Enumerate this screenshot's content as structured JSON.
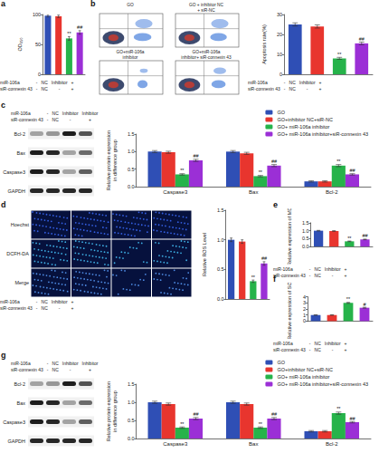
{
  "chart_data": [
    {
      "type": "bar",
      "panel": "a",
      "ylabel": "OD₄₅₀",
      "categories": [
        null,
        null,
        null,
        null
      ],
      "values": [
        98,
        97,
        60,
        70
      ],
      "errors": [
        2,
        2,
        3,
        3
      ],
      "colors": [
        "#2f4fb5",
        "#e8352e",
        "#26b34a",
        "#9b2fd6"
      ],
      "significance": [
        null,
        null,
        "**",
        "##"
      ],
      "ylim": [
        0,
        100
      ],
      "yticks": [
        0,
        50,
        100
      ],
      "grid": false,
      "conditions": {
        "rows": [
          {
            "label": "miR-106a",
            "cells": [
              "-",
              "NC",
              "Inhibitor",
              "+"
            ]
          },
          {
            "label": "siR-connexin 43",
            "cells": [
              "-",
              "NC",
              "-",
              "+"
            ]
          }
        ]
      }
    },
    {
      "type": "bar",
      "panel": "b",
      "ylabel": "Apoptosis rate(%)",
      "categories": [
        null,
        null,
        null,
        null
      ],
      "values": [
        25,
        24,
        8,
        15.5
      ],
      "errors": [
        0.8,
        0.8,
        0.5,
        0.7
      ],
      "colors": [
        "#2f4fb5",
        "#e8352e",
        "#26b34a",
        "#9b2fd6"
      ],
      "significance": [
        null,
        null,
        "**",
        "##"
      ],
      "ylim": [
        0,
        30
      ],
      "yticks": [
        0,
        10,
        20,
        30
      ],
      "grid": false,
      "conditions": {
        "rows": [
          {
            "label": "miR-106a",
            "cells": [
              "-",
              "NC",
              "Inhibitor",
              "+"
            ]
          },
          {
            "label": "siR-connexin 43",
            "cells": [
              "-",
              "NC",
              "-",
              "+"
            ]
          }
        ]
      }
    },
    {
      "type": "bar",
      "panel": "c",
      "ylabel": "Relative protein expression\nin difference group",
      "categories": [
        "Caspase3",
        "Bax",
        "Bcl-2"
      ],
      "series": [
        {
          "name": "GO",
          "color": "#2f4fb5",
          "values": [
            1.0,
            1.0,
            0.15
          ],
          "errors": [
            0.03,
            0.03,
            0.02
          ],
          "significance": [
            null,
            null,
            null
          ]
        },
        {
          "name": "GO+inhibitor NC+siR-NC",
          "color": "#e8352e",
          "values": [
            0.98,
            0.95,
            0.15
          ],
          "errors": [
            0.03,
            0.03,
            0.02
          ],
          "significance": [
            null,
            null,
            null
          ]
        },
        {
          "name": "GO+ miR-106a inhibitor",
          "color": "#26b34a",
          "values": [
            0.35,
            0.3,
            0.6
          ],
          "errors": [
            0.02,
            0.02,
            0.03
          ],
          "significance": [
            "**",
            "**",
            "**"
          ]
        },
        {
          "name": "GO+ miR-106a inhibitor+siR-connexin 43",
          "color": "#9b2fd6",
          "values": [
            0.75,
            0.6,
            0.35
          ],
          "errors": [
            0.03,
            0.03,
            0.02
          ],
          "significance": [
            "##",
            "##",
            "##"
          ]
        }
      ],
      "ylim": [
        0,
        1.5
      ],
      "yticks": [
        {
          "value": 0,
          "label": "0.0"
        },
        0.5,
        {
          "value": 1,
          "label": "1.0"
        },
        1.5
      ],
      "grid": false,
      "legend": "upper right"
    },
    {
      "type": "bar",
      "panel": "d",
      "ylabel": "Relative ROS Level",
      "categories": [
        null,
        null,
        null,
        null
      ],
      "values": [
        1.0,
        0.97,
        0.3,
        0.6
      ],
      "errors": [
        0.03,
        0.03,
        0.02,
        0.03
      ],
      "colors": [
        "#2f4fb5",
        "#e8352e",
        "#26b34a",
        "#9b2fd6"
      ],
      "significance": [
        null,
        null,
        "**",
        "##"
      ],
      "ylim": [
        0,
        1.5
      ],
      "yticks": [
        {
          "value": 0,
          "label": "0.0"
        },
        0.5,
        {
          "value": 1,
          "label": "1.0"
        },
        1.5
      ],
      "grid": false
    },
    {
      "type": "bar",
      "panel": "e",
      "ylabel": "Relative expression of MDA",
      "categories": [
        null,
        null,
        null,
        null
      ],
      "values": [
        1.0,
        0.98,
        0.33,
        0.45
      ],
      "errors": [
        0.02,
        0.02,
        0.02,
        0.02
      ],
      "colors": [
        "#2f4fb5",
        "#e8352e",
        "#26b34a",
        "#9b2fd6"
      ],
      "significance": [
        null,
        null,
        "**",
        "##"
      ],
      "ylim": [
        0,
        1.5
      ],
      "yticks": [
        {
          "value": 0,
          "label": "0.0"
        },
        0.5,
        {
          "value": 1,
          "label": "1.0"
        },
        1.5
      ],
      "grid": false,
      "conditions": {
        "rows": [
          {
            "label": "miR-106a",
            "cells": [
              "-",
              "NC",
              "Inhibitor",
              "+"
            ]
          },
          {
            "label": "siR-connexin 43",
            "cells": [
              "-",
              "NC",
              "-",
              "+"
            ]
          }
        ]
      }
    },
    {
      "type": "bar",
      "panel": "f",
      "ylabel": "Relative expression of SOD",
      "categories": [
        null,
        null,
        null,
        null
      ],
      "values": [
        1.0,
        1.0,
        3.0,
        2.2
      ],
      "errors": [
        0.04,
        0.04,
        0.08,
        0.08
      ],
      "colors": [
        "#2f4fb5",
        "#e8352e",
        "#26b34a",
        "#9b2fd6"
      ],
      "significance": [
        null,
        null,
        "**",
        "#"
      ],
      "ylim": [
        0,
        4
      ],
      "yticks": [
        0,
        1,
        2,
        3,
        4
      ],
      "grid": false,
      "conditions": {
        "rows": [
          {
            "label": "miR-106a",
            "cells": [
              "-",
              "NC",
              "Inhibitor",
              "+"
            ]
          },
          {
            "label": "siR-connexin 43",
            "cells": [
              "-",
              "NC",
              "-",
              "+"
            ]
          }
        ]
      }
    },
    {
      "type": "bar",
      "panel": "g",
      "ylabel": "Relative protein expression\nin difference group",
      "categories": [
        "Caspase3",
        "Bax",
        "Bcl-2"
      ],
      "series": [
        {
          "name": "GO",
          "color": "#2f4fb5",
          "values": [
            1.0,
            1.0,
            0.2
          ],
          "errors": [
            0.03,
            0.03,
            0.02
          ],
          "significance": [
            null,
            null,
            null
          ]
        },
        {
          "name": "GO+inhibitor NC+siR-NC",
          "color": "#e8352e",
          "values": [
            0.95,
            0.95,
            0.2
          ],
          "errors": [
            0.03,
            0.03,
            0.02
          ],
          "significance": [
            null,
            null,
            null
          ]
        },
        {
          "name": "GO+ miR-106a inhibitor",
          "color": "#26b34a",
          "values": [
            0.3,
            0.3,
            0.7
          ],
          "errors": [
            0.02,
            0.02,
            0.03
          ],
          "significance": [
            "**",
            "**",
            "**"
          ]
        },
        {
          "name": "GO+ miR-106a inhibitor+siR-connexin 43",
          "color": "#9b2fd6",
          "values": [
            0.55,
            0.55,
            0.45
          ],
          "errors": [
            0.03,
            0.03,
            0.02
          ],
          "significance": [
            "##",
            "##",
            "##"
          ]
        }
      ],
      "ylim": [
        0,
        1.5
      ],
      "yticks": [
        {
          "value": 0,
          "label": "0.0"
        },
        0.5,
        {
          "value": 1,
          "label": "1.0"
        },
        1.5
      ],
      "grid": false,
      "legend": "upper right"
    }
  ],
  "figure": {
    "flow": {
      "titles": [
        "GO",
        "GO + inhibitor NC\n+ siR-NC",
        "GO+miR-106a\ninhibitor",
        "GO+miR-106a\ninhibitor+ siR-connexin 43"
      ]
    },
    "blots": [
      {
        "panel": "c",
        "bands": [
          "Bcl-2",
          "Bax",
          "Caspase3",
          "GAPDH"
        ],
        "conditions": {
          "rows": [
            {
              "label": "miR-106a",
              "cells": [
                "-",
                "NC",
                "Inhibitor",
                "Inhibitor"
              ]
            },
            {
              "label": "siR-connexin 43",
              "cells": [
                "-",
                "NC",
                "-",
                "+"
              ]
            }
          ]
        }
      },
      {
        "panel": "g",
        "bands": [
          "Bcl-2",
          "Bax",
          "Caspase3",
          "GAPDH"
        ],
        "conditions": {
          "rows": [
            {
              "label": "miR-106a",
              "cells": [
                "-",
                "NC",
                "Inhibitor",
                "Inhibitor"
              ]
            },
            {
              "label": "siR-connexin 43",
              "cells": [
                "-",
                "NC",
                "-",
                "+"
              ]
            }
          ]
        }
      }
    ],
    "fluorescence": {
      "rows": [
        "Hoechst",
        "DCFH-DA",
        "Merge"
      ],
      "conditions": {
        "rows": [
          {
            "label": "miR-106a",
            "cells": [
              "-",
              "NC",
              "Inhibitor",
              "+"
            ]
          },
          {
            "label": "siR-connexin 43",
            "cells": [
              "-",
              "NC",
              "-",
              "+"
            ]
          }
        ]
      }
    }
  }
}
